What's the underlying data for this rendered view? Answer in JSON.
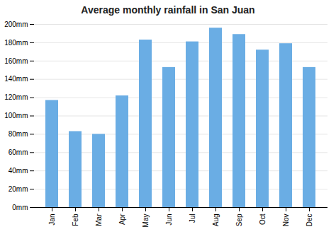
{
  "chart_data": {
    "type": "bar",
    "title": "Average monthly rainfall in San Juan",
    "categories": [
      "Jan",
      "Feb",
      "Mar",
      "Apr",
      "May",
      "Jun",
      "Jul",
      "Aug",
      "Sep",
      "Oct",
      "Nov",
      "Dec"
    ],
    "values": [
      117,
      83,
      80,
      122,
      183,
      153,
      181,
      196,
      189,
      172,
      179,
      153
    ],
    "color": "#6aade4",
    "ylim": [
      0,
      200
    ],
    "yticks": [
      {
        "value": 0,
        "label": "0mm"
      },
      {
        "value": 20,
        "label": "20mm"
      },
      {
        "value": 40,
        "label": "40mm"
      },
      {
        "value": 60,
        "label": "60mm"
      },
      {
        "value": 80,
        "label": "80mm"
      },
      {
        "value": 100,
        "label": "100mm"
      },
      {
        "value": 120,
        "label": "120mm"
      },
      {
        "value": 140,
        "label": "140mm"
      },
      {
        "value": 160,
        "label": "160mm"
      },
      {
        "value": 180,
        "label": "180mm"
      },
      {
        "value": 200,
        "label": "200mm"
      }
    ],
    "grid": true
  }
}
